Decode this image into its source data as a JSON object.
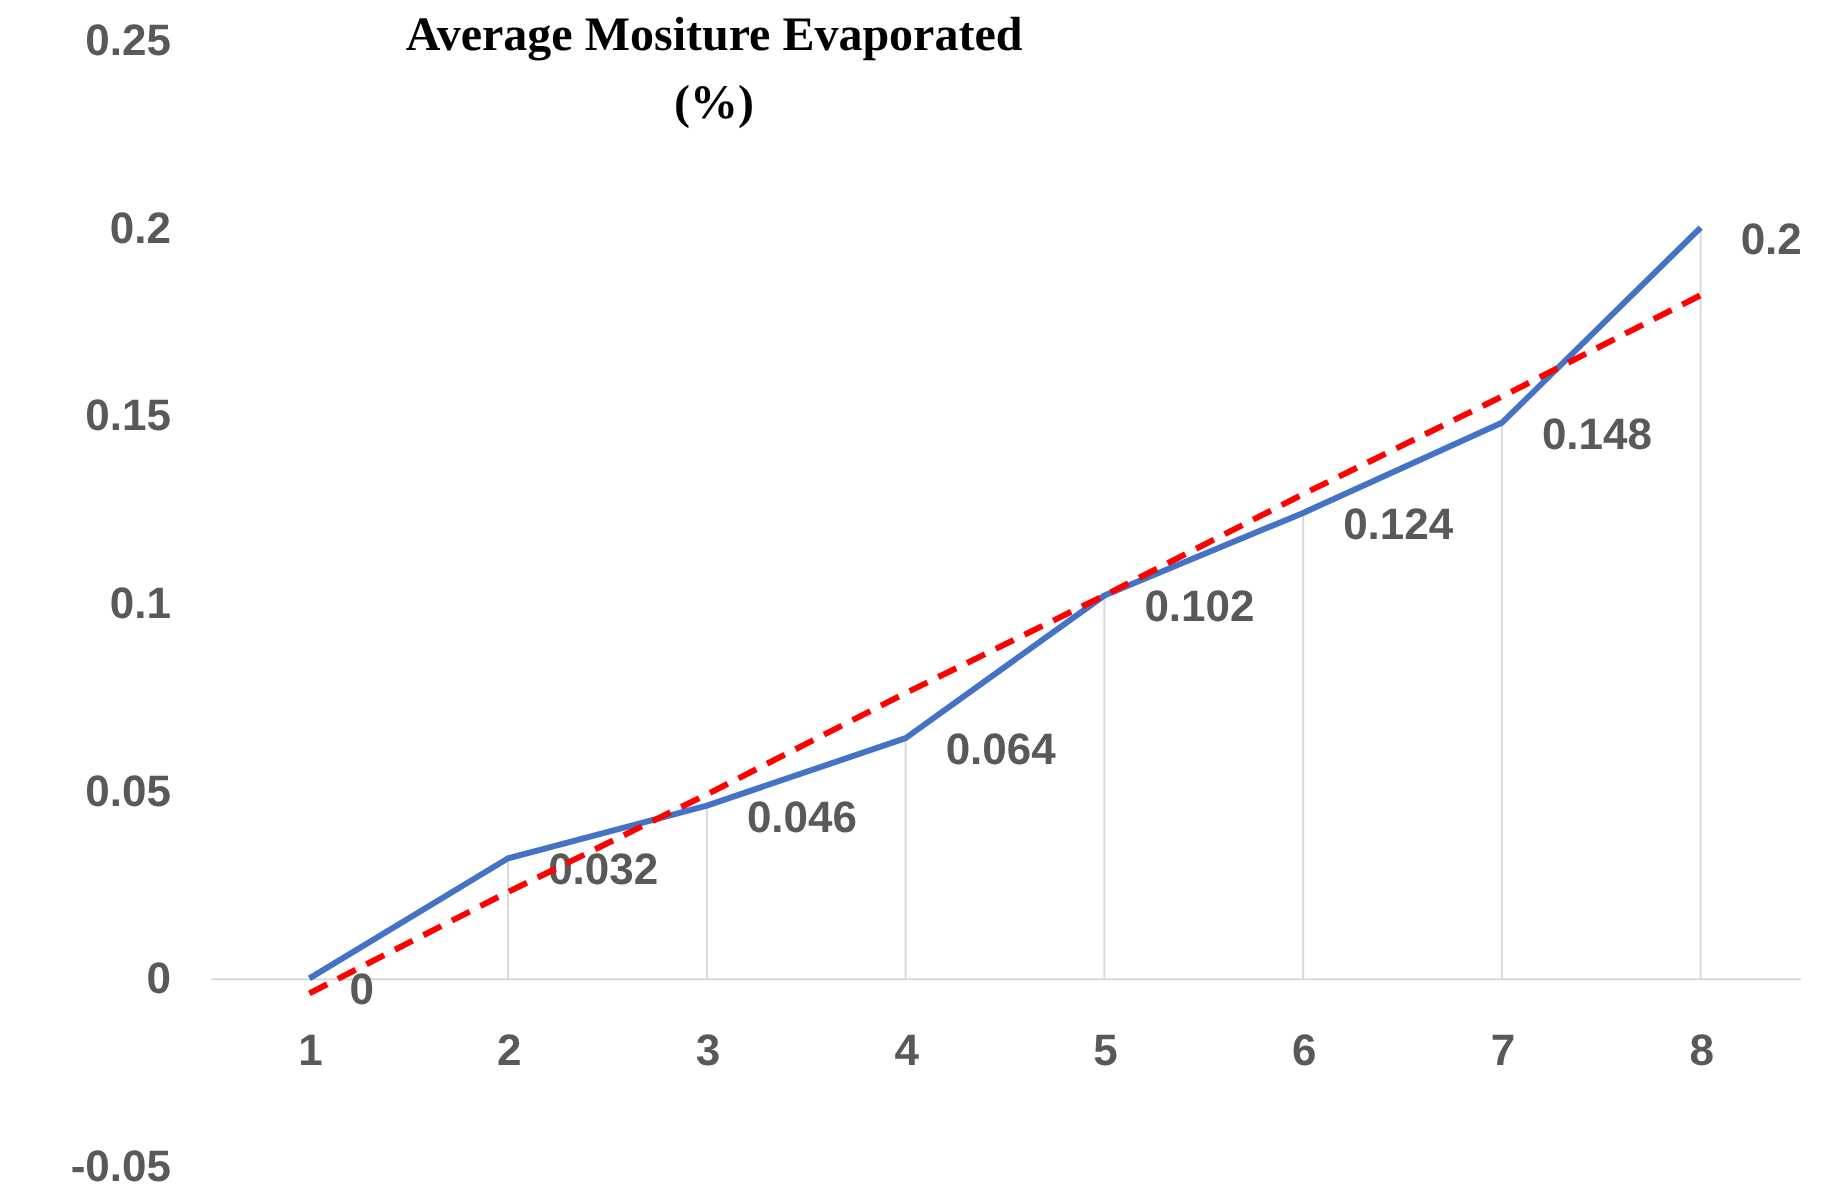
{
  "chart_data": {
    "type": "line",
    "title": "Average Mositure Evaporated\n(%)",
    "categories": [
      "1",
      "2",
      "3",
      "4",
      "5",
      "6",
      "7",
      "8"
    ],
    "series": [
      {
        "type": "line",
        "color": "#4472c4",
        "values": [
          0,
          0.032,
          0.046,
          0.064,
          0.102,
          0.124,
          0.148,
          0.2
        ],
        "value_labels": [
          "0",
          "0.032",
          "0.046",
          "0.064",
          "0.102",
          "0.124",
          "0.148",
          "0.2"
        ]
      },
      {
        "type": "line",
        "color": "#ff0000",
        "line_style": "dashed",
        "values": [
          -0.004,
          0.023,
          0.049,
          0.076,
          0.102,
          0.129,
          0.155,
          0.182
        ]
      }
    ],
    "ylim": [
      -0.05,
      0.25
    ],
    "yticks": [
      -0.05,
      0,
      0.05,
      0.1,
      0.15,
      0.2,
      0.25
    ],
    "marker": "none",
    "grid": false
  }
}
